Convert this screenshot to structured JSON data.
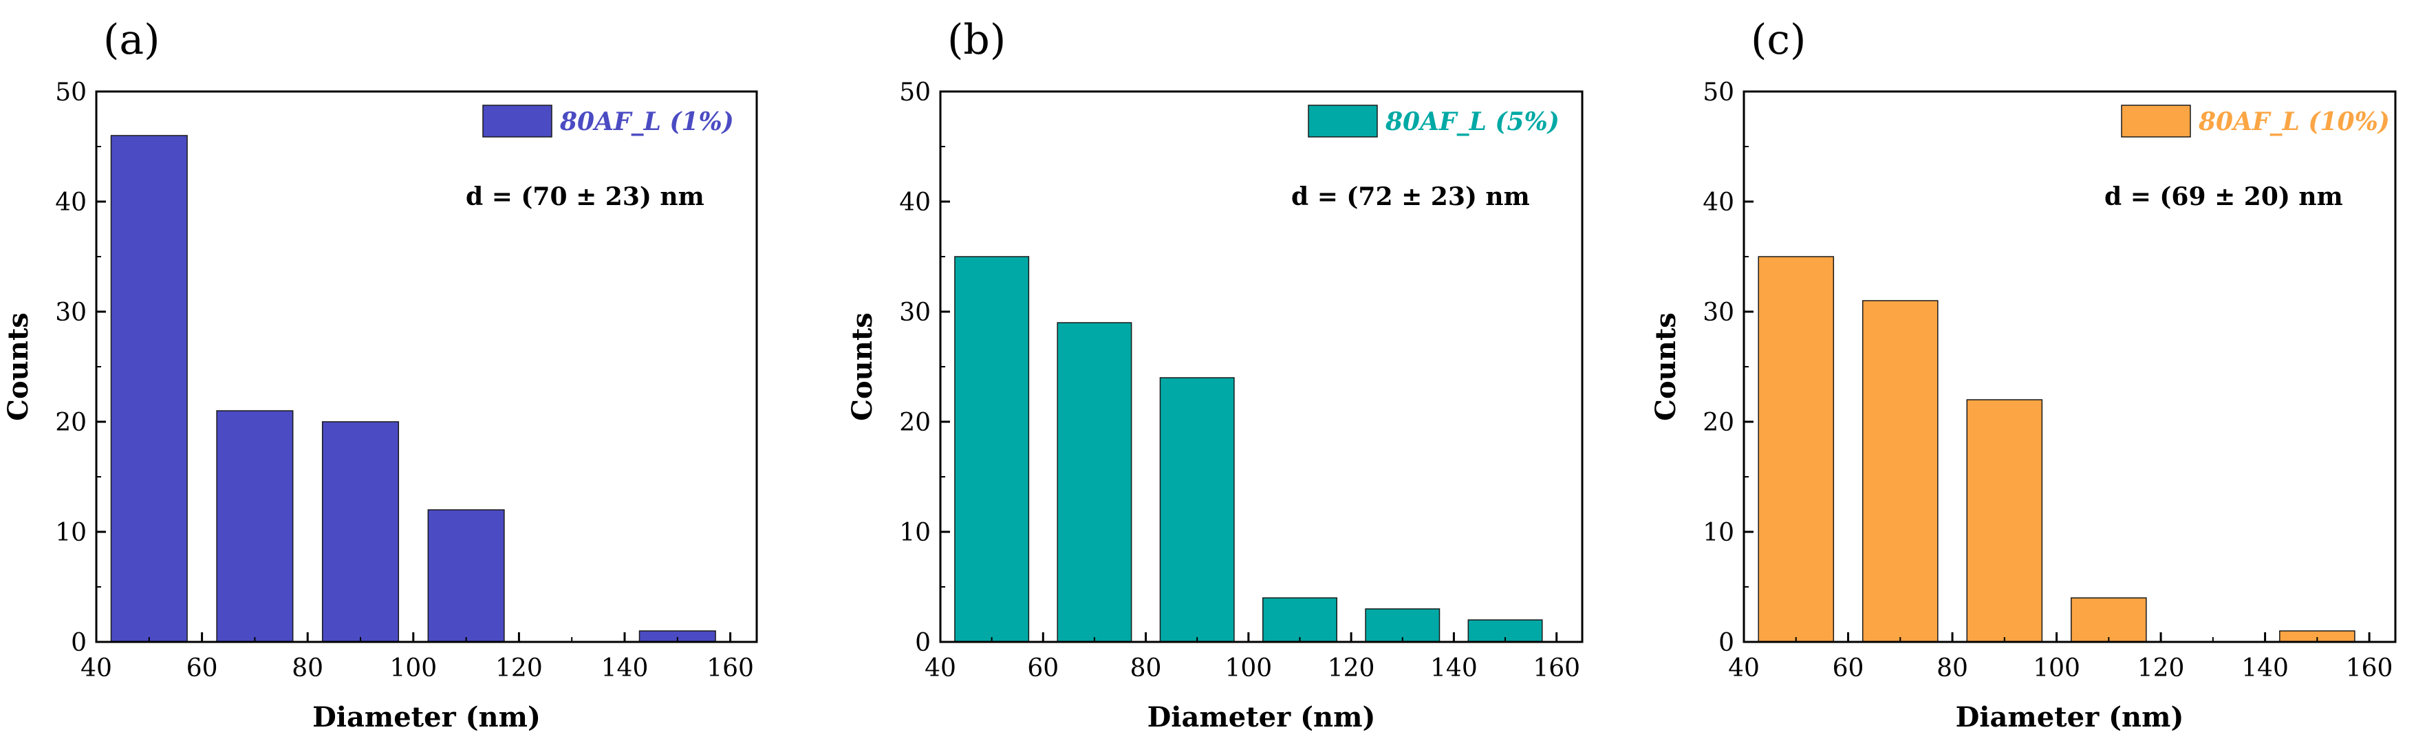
{
  "chart_data": [
    {
      "type": "bar",
      "panel": "(a)",
      "series_name": "80AF_L (1%)",
      "color": "#4B4BC3",
      "annotation": "d = (70 ± 23) nm",
      "x": [
        50,
        70,
        90,
        110,
        130,
        150
      ],
      "values": [
        46,
        21,
        20,
        12,
        0,
        1
      ],
      "xlabel": "Diameter (nm)",
      "ylabel": "Counts",
      "xlim": [
        40,
        165
      ],
      "ylim": [
        0,
        50
      ],
      "xticks": [
        40,
        60,
        80,
        100,
        120,
        140,
        160
      ],
      "yticks": [
        0,
        10,
        20,
        30,
        40,
        50
      ],
      "legend": "top-right"
    },
    {
      "type": "bar",
      "panel": "(b)",
      "series_name": "80AF_L (5%)",
      "color": "#00A9A5",
      "annotation": "d = (72 ± 23) nm",
      "x": [
        50,
        70,
        90,
        110,
        130,
        150
      ],
      "values": [
        35,
        29,
        24,
        4,
        3,
        2
      ],
      "xlabel": "Diameter (nm)",
      "ylabel": "Counts",
      "xlim": [
        40,
        165
      ],
      "ylim": [
        0,
        50
      ],
      "xticks": [
        40,
        60,
        80,
        100,
        120,
        140,
        160
      ],
      "yticks": [
        0,
        10,
        20,
        30,
        40,
        50
      ],
      "legend": "top-right"
    },
    {
      "type": "bar",
      "panel": "(c)",
      "series_name": "80AF_L (10%)",
      "color": "#FBA544",
      "annotation": "d = (69 ± 20) nm",
      "x": [
        50,
        70,
        90,
        110,
        130,
        150
      ],
      "values": [
        35,
        31,
        22,
        4,
        0,
        1
      ],
      "xlabel": "Diameter (nm)",
      "ylabel": "Counts",
      "xlim": [
        40,
        165
      ],
      "ylim": [
        0,
        50
      ],
      "xticks": [
        40,
        60,
        80,
        100,
        120,
        140,
        160
      ],
      "yticks": [
        0,
        10,
        20,
        30,
        40,
        50
      ],
      "legend": "top-right"
    }
  ]
}
